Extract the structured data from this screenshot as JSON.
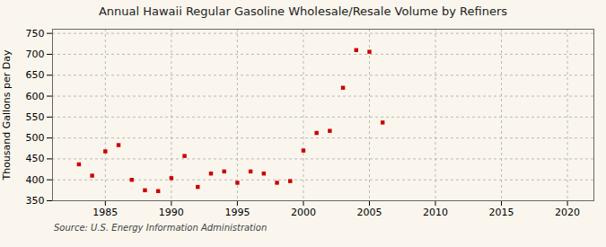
{
  "chart_data": {
    "type": "scatter",
    "title": "Annual Hawaii Regular Gasoline Wholesale/Resale Volume by Refiners",
    "ylabel": "Thousand Gallons per Day",
    "source": "Source: U.S. Energy Information Administration",
    "x": [
      1983,
      1984,
      1985,
      1986,
      1987,
      1988,
      1989,
      1990,
      1991,
      1992,
      1993,
      1994,
      1995,
      1996,
      1997,
      1998,
      1999,
      2000,
      2001,
      2002,
      2003,
      2004,
      2005,
      2006
    ],
    "values": [
      437,
      410,
      468,
      483,
      400,
      375,
      373,
      404,
      457,
      383,
      415,
      420,
      393,
      420,
      415,
      393,
      397,
      470,
      512,
      517,
      620,
      710,
      706,
      537
    ],
    "color": "#cc0000",
    "marker": "square",
    "xlim": [
      1981,
      2022
    ],
    "ylim": [
      350,
      760
    ],
    "xticks": [
      1985,
      1990,
      1995,
      2000,
      2005,
      2010,
      2015,
      2020
    ],
    "yticks": [
      350,
      400,
      450,
      500,
      550,
      600,
      650,
      700,
      750
    ],
    "grid": true
  }
}
